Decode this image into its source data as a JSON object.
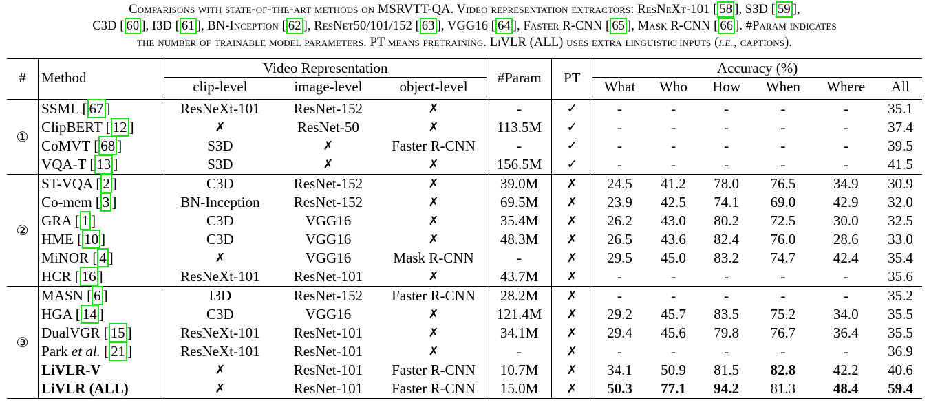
{
  "caption": {
    "line1": "Comparisons with state-of-the-art methods on MSRVTT-QA. Video representation extractors: ResNeXt-101 [58], S3D [59],",
    "line2": "C3D [60], I3D [61], BN-Inception [62], ResNet50/101/152 [63], VGG16 [64], Faster R-CNN [65], Mask R-CNN [66]. #Param indicates",
    "line3": "the number of trainable model parameters. PT means pretraining. LiVLR (ALL) uses extra linguistic inputs (i.e., captions)."
  },
  "header": {
    "hash": "#",
    "method": "Method",
    "video_representation": "Video Representation",
    "clip_level": "clip-level",
    "image_level": "image-level",
    "object_level": "object-level",
    "param": "#Param",
    "pt": "PT",
    "accuracy": "Accuracy (%)",
    "what": "What",
    "who": "Who",
    "how": "How",
    "when": "When",
    "where": "Where",
    "all": "All"
  },
  "groups": [
    {
      "label": "①",
      "rows": [
        {
          "method": "SSML",
          "cite": "67",
          "clip": "ResNeXt-101",
          "image": "ResNet-152",
          "object": "✗",
          "param": "-",
          "pt": "✓",
          "what": "-",
          "who": "-",
          "how": "-",
          "when": "-",
          "where": "-",
          "all": "35.1"
        },
        {
          "method": "ClipBERT",
          "cite": "12",
          "clip": "✗",
          "image": "ResNet-50",
          "object": "✗",
          "param": "113.5M",
          "pt": "✓",
          "what": "-",
          "who": "-",
          "how": "-",
          "when": "-",
          "where": "-",
          "all": "37.4"
        },
        {
          "method": "CoMVT",
          "cite": "68",
          "clip": "S3D",
          "image": "✗",
          "object": "Faster R-CNN",
          "param": "-",
          "pt": "✓",
          "what": "-",
          "who": "-",
          "how": "-",
          "when": "-",
          "where": "-",
          "all": "39.5"
        },
        {
          "method": "VQA-T",
          "cite": "13",
          "clip": "S3D",
          "image": "✗",
          "object": "✗",
          "param": "156.5M",
          "pt": "✓",
          "what": "-",
          "who": "-",
          "how": "-",
          "when": "-",
          "where": "-",
          "all": "41.5"
        }
      ]
    },
    {
      "label": "②",
      "rows": [
        {
          "method": "ST-VQA",
          "cite": "2",
          "clip": "C3D",
          "image": "ResNet-152",
          "object": "✗",
          "param": "39.0M",
          "pt": "✗",
          "what": "24.5",
          "who": "41.2",
          "how": "78.0",
          "when": "76.5",
          "where": "34.9",
          "all": "30.9"
        },
        {
          "method": "Co-mem",
          "cite": "3",
          "clip": "BN-Inception",
          "image": "ResNet-152",
          "object": "✗",
          "param": "69.5M",
          "pt": "✗",
          "what": "23.9",
          "who": "42.5",
          "how": "74.1",
          "when": "69.0",
          "where": "42.9",
          "all": "32.0"
        },
        {
          "method": "GRA",
          "cite": "1",
          "clip": "C3D",
          "image": "VGG16",
          "object": "✗",
          "param": "35.4M",
          "pt": "✗",
          "what": "26.2",
          "who": "43.0",
          "how": "80.2",
          "when": "72.5",
          "where": "30.0",
          "all": "32.5"
        },
        {
          "method": "HME",
          "cite": "10",
          "clip": "C3D",
          "image": "VGG16",
          "object": "✗",
          "param": "48.3M",
          "pt": "✗",
          "what": "26.5",
          "who": "43.6",
          "how": "82.4",
          "when": "76.0",
          "where": "28.6",
          "all": "33.0"
        },
        {
          "method": "MiNOR",
          "cite": "4",
          "clip": "✗",
          "image": "VGG16",
          "object": "Mask R-CNN",
          "param": "-",
          "pt": "✗",
          "what": "29.5",
          "who": "45.0",
          "how": "83.2",
          "when": "74.7",
          "where": "42.4",
          "all": "35.4"
        },
        {
          "method": "HCR",
          "cite": "16",
          "clip": "ResNeXt-101",
          "image": "ResNet-101",
          "object": "✗",
          "param": "43.7M",
          "pt": "✗",
          "what": "-",
          "who": "-",
          "how": "-",
          "when": "-",
          "where": "-",
          "all": "35.6"
        }
      ]
    },
    {
      "label": "③",
      "rows": [
        {
          "method": "MASN",
          "cite": "6",
          "clip": "I3D",
          "image": "ResNet-152",
          "object": "Faster R-CNN",
          "param": "28.2M",
          "pt": "✗",
          "what": "-",
          "who": "-",
          "how": "-",
          "when": "-",
          "where": "-",
          "all": "35.2"
        },
        {
          "method": "HGA",
          "cite": "14",
          "clip": "C3D",
          "image": "VGG16",
          "object": "✗",
          "param": "121.4M",
          "pt": "✗",
          "what": "29.2",
          "who": "45.7",
          "how": "83.5",
          "when": "75.2",
          "where": "34.0",
          "all": "35.5"
        },
        {
          "method": "DualVGR",
          "cite": "15",
          "clip": "ResNeXt-101",
          "image": "ResNet-101",
          "object": "✗",
          "param": "34.1M",
          "pt": "✗",
          "what": "29.4",
          "who": "45.6",
          "how": "79.8",
          "when": "76.7",
          "where": "36.4",
          "all": "35.5"
        },
        {
          "method": "Park",
          "method_italic": "et al.",
          "cite": "21",
          "clip": "ResNeXt-101",
          "image": "ResNet-101",
          "object": "✗",
          "param": "-",
          "pt": "✗",
          "what": "-",
          "who": "-",
          "how": "-",
          "when": "-",
          "where": "-",
          "all": "36.9"
        },
        {
          "method": "LiVLR-V",
          "cite": "",
          "bold_method": true,
          "clip": "✗",
          "image": "ResNet-101",
          "object": "Faster R-CNN",
          "param": "10.7M",
          "pt": "✗",
          "what": "34.1",
          "who": "50.9",
          "how": "81.5",
          "when": "82.8",
          "where": "42.2",
          "all": "40.6",
          "bold": [
            "when"
          ]
        },
        {
          "method": "LiVLR (ALL)",
          "cite": "",
          "bold_method": true,
          "clip": "✗",
          "image": "ResNet-101",
          "object": "Faster R-CNN",
          "param": "15.0M",
          "pt": "✗",
          "what": "50.3",
          "who": "77.1",
          "how": "94.2",
          "when": "81.3",
          "where": "48.4",
          "all": "59.4",
          "bold": [
            "what",
            "who",
            "how",
            "where",
            "all"
          ]
        }
      ]
    }
  ]
}
